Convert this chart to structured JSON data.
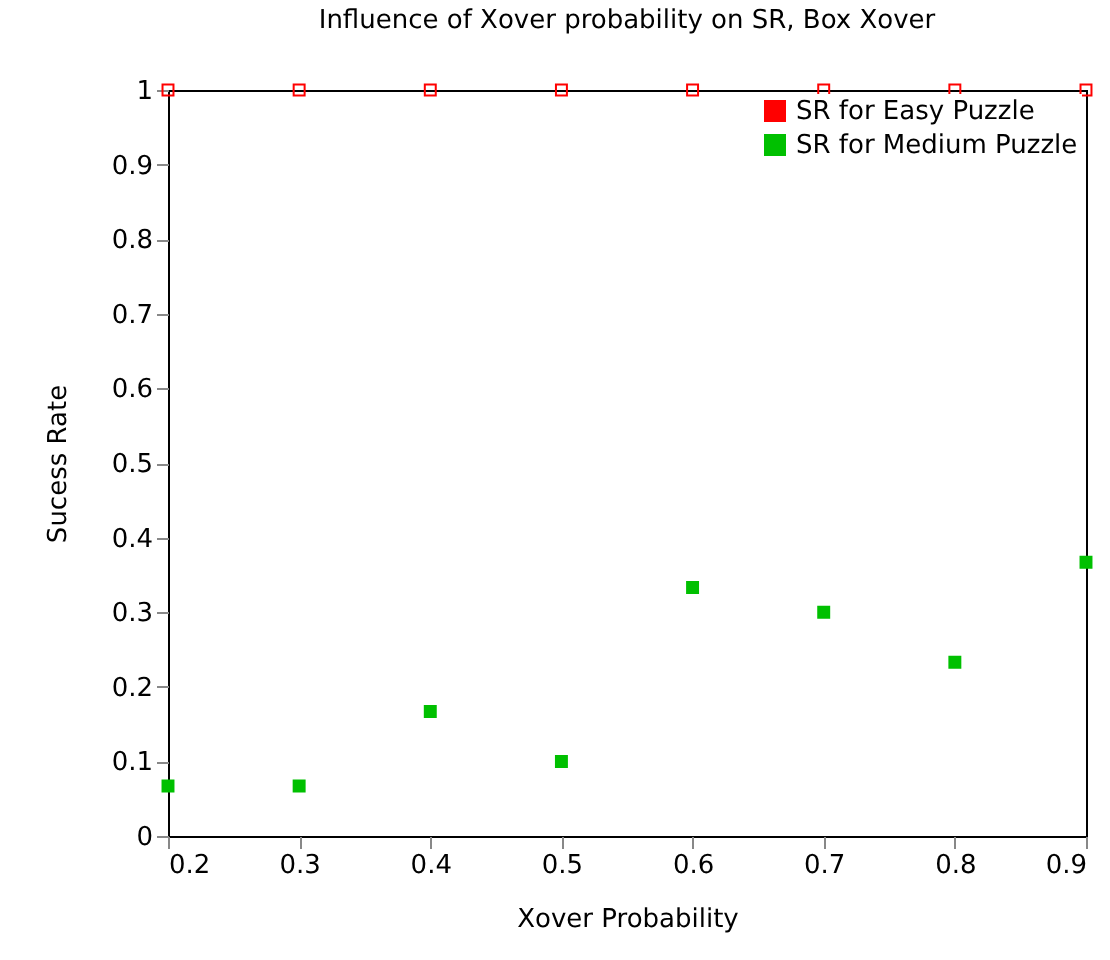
{
  "chart_data": {
    "type": "scatter",
    "title": "Influence of Xover probability on SR, Box Xover",
    "xlabel": "Xover Probability",
    "ylabel": "Sucess Rate",
    "x": [
      0.2,
      0.3,
      0.4,
      0.5,
      0.6,
      0.7,
      0.8,
      0.9
    ],
    "series": [
      {
        "name": "SR for Easy Puzzle",
        "color": "#ff0000",
        "values": [
          1,
          1,
          1,
          1,
          1,
          1,
          1,
          1
        ]
      },
      {
        "name": "SR for Medium Puzzle",
        "color": "#00c000",
        "values": [
          0.067,
          0.067,
          0.167,
          0.1,
          0.333,
          0.3,
          0.233,
          0.367
        ]
      }
    ],
    "xlim": [
      0.2,
      0.9
    ],
    "xticks": [
      0.2,
      0.3,
      0.4,
      0.5,
      0.6,
      0.7,
      0.8,
      0.9
    ],
    "ylim": [
      0,
      1
    ],
    "yticks": [
      0,
      0.1,
      0.2,
      0.3,
      0.4,
      0.5,
      0.6,
      0.7,
      0.8,
      0.9,
      1
    ],
    "grid": false,
    "legend": "top right",
    "marker": "square"
  }
}
